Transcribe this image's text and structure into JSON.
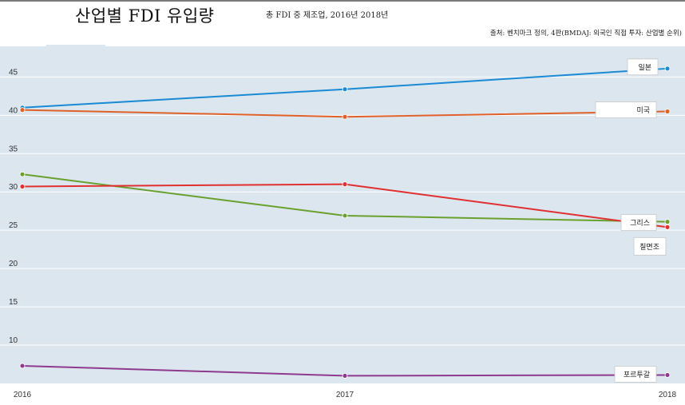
{
  "header": {
    "title": "산업별 FDI 유입량",
    "subtitle": "총 FDI 중 제조업, 2016년 2018년",
    "source": "출처: 벤치마크 정의, 4판(BMDAJ: 외국인 직접 투자: 산업별 순위)"
  },
  "chart_data": {
    "type": "line",
    "title": "산업별 FDI 유입량",
    "subtitle": "총 FDI 중 제조업, 2016년 2018년",
    "x": [
      "2016",
      "2017",
      "2018"
    ],
    "ylim": [
      5,
      49
    ],
    "yticks": [
      10,
      15,
      20,
      25,
      30,
      35,
      40,
      45
    ],
    "grid": true,
    "legend": "end-of-line labels",
    "series": [
      {
        "name": "일본",
        "color": "#1a8ad4",
        "values": [
          41.0,
          43.4,
          46.1
        ]
      },
      {
        "name": "미국",
        "color": "#e0622a",
        "values": [
          40.7,
          39.8,
          40.5
        ]
      },
      {
        "name": "그리스",
        "color": "#6aa12e",
        "values": [
          32.3,
          26.9,
          26.1
        ]
      },
      {
        "name": "칠면조",
        "color": "#e03030",
        "values": [
          30.7,
          31.0,
          25.4
        ]
      },
      {
        "name": "포르투갈",
        "color": "#8e3a8e",
        "values": [
          7.3,
          6.0,
          6.1
        ]
      }
    ]
  },
  "colors": {
    "plot_bg": "#dce6ef",
    "grid": "#ffffff"
  }
}
